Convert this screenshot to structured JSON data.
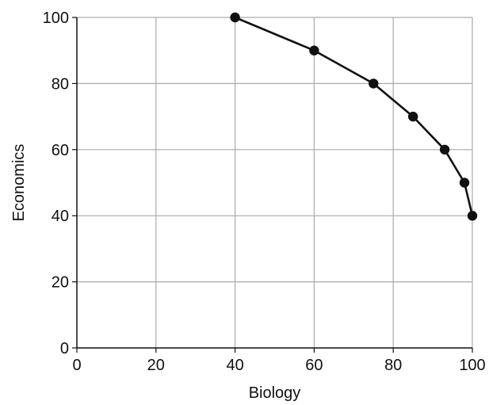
{
  "chart_data": {
    "type": "line",
    "title": "",
    "xlabel": "Biology",
    "ylabel": "Economics",
    "xlim": [
      0,
      100
    ],
    "ylim": [
      0,
      100
    ],
    "x_ticks": [
      "0",
      "20",
      "40",
      "60",
      "80",
      "100"
    ],
    "y_ticks": [
      "0",
      "20",
      "40",
      "60",
      "80",
      "100"
    ],
    "grid": true,
    "series": [
      {
        "x": [
          40,
          60,
          75,
          85,
          93,
          98,
          100
        ],
        "y": [
          100,
          90,
          80,
          70,
          60,
          50,
          40
        ],
        "markers": "filled-circle"
      }
    ],
    "colors": {
      "line": "#111111",
      "marker": "#111111",
      "grid": "#aaaaaa",
      "axis": "#111111"
    }
  }
}
